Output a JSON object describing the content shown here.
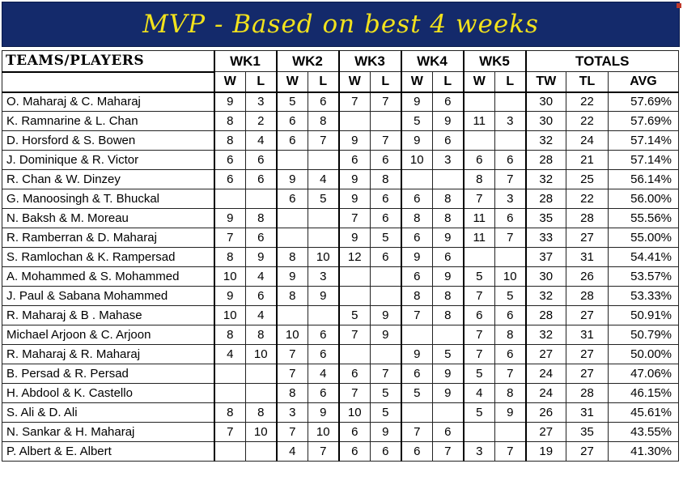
{
  "title": "MVP - Based on best 4 weeks",
  "header": {
    "teams_label": "TEAMS/PLAYERS",
    "weeks": [
      "WK1",
      "WK2",
      "WK3",
      "WK4",
      "WK5"
    ],
    "totals_label": "TOTALS",
    "w": "W",
    "l": "L",
    "tw": "TW",
    "tl": "TL",
    "avg": "AVG"
  },
  "rows": [
    {
      "name": "O. Maharaj & C. Maharaj",
      "wk": [
        [
          "9",
          "3"
        ],
        [
          "5",
          "6"
        ],
        [
          "7",
          "7"
        ],
        [
          "9",
          "6"
        ],
        [
          "",
          ""
        ]
      ],
      "tw": "30",
      "tl": "22",
      "avg": "57.69%"
    },
    {
      "name": "K. Ramnarine & L. Chan",
      "wk": [
        [
          "8",
          "2"
        ],
        [
          "6",
          "8"
        ],
        [
          "",
          ""
        ],
        [
          "5",
          "9"
        ],
        [
          "11",
          "3"
        ]
      ],
      "tw": "30",
      "tl": "22",
      "avg": "57.69%"
    },
    {
      "name": "D. Horsford & S. Bowen",
      "wk": [
        [
          "8",
          "4"
        ],
        [
          "6",
          "7"
        ],
        [
          "9",
          "7"
        ],
        [
          "9",
          "6"
        ],
        [
          "",
          ""
        ]
      ],
      "tw": "32",
      "tl": "24",
      "avg": "57.14%"
    },
    {
      "name": "J. Dominique  & R. Victor",
      "wk": [
        [
          "6",
          "6"
        ],
        [
          "",
          ""
        ],
        [
          "6",
          "6"
        ],
        [
          "10",
          "3"
        ],
        [
          "6",
          "6"
        ]
      ],
      "tw": "28",
      "tl": "21",
      "avg": "57.14%"
    },
    {
      "name": "R. Chan & W. Dinzey",
      "wk": [
        [
          "6",
          "6"
        ],
        [
          "9",
          "4"
        ],
        [
          "9",
          "8"
        ],
        [
          "",
          ""
        ],
        [
          "8",
          "7"
        ]
      ],
      "tw": "32",
      "tl": "25",
      "avg": "56.14%"
    },
    {
      "name": "G. Manoosingh & T. Bhuckal",
      "wk": [
        [
          "",
          ""
        ],
        [
          "6",
          "5"
        ],
        [
          "9",
          "6"
        ],
        [
          "6",
          "8"
        ],
        [
          "7",
          "3"
        ]
      ],
      "tw": "28",
      "tl": "22",
      "avg": "56.00%"
    },
    {
      "name": "N. Baksh & M. Moreau",
      "wk": [
        [
          "9",
          "8"
        ],
        [
          "",
          ""
        ],
        [
          "7",
          "6"
        ],
        [
          "8",
          "8"
        ],
        [
          "11",
          "6"
        ]
      ],
      "tw": "35",
      "tl": "28",
      "avg": "55.56%"
    },
    {
      "name": "R. Ramberran & D. Maharaj",
      "wk": [
        [
          "7",
          "6"
        ],
        [
          "",
          ""
        ],
        [
          "9",
          "5"
        ],
        [
          "6",
          "9"
        ],
        [
          "11",
          "7"
        ]
      ],
      "tw": "33",
      "tl": "27",
      "avg": "55.00%"
    },
    {
      "name": "S. Ramlochan & K. Rampersad",
      "wk": [
        [
          "8",
          "9"
        ],
        [
          "8",
          "10"
        ],
        [
          "12",
          "6"
        ],
        [
          "9",
          "6"
        ],
        [
          "",
          ""
        ]
      ],
      "tw": "37",
      "tl": "31",
      "avg": "54.41%"
    },
    {
      "name": "A. Mohammed & S. Mohammed",
      "wk": [
        [
          "10",
          "4"
        ],
        [
          "9",
          "3"
        ],
        [
          "",
          ""
        ],
        [
          "6",
          "9"
        ],
        [
          "5",
          "10"
        ]
      ],
      "tw": "30",
      "tl": "26",
      "avg": "53.57%"
    },
    {
      "name": "J. Paul & Sabana Mohammed",
      "wk": [
        [
          "9",
          "6"
        ],
        [
          "8",
          "9"
        ],
        [
          "",
          ""
        ],
        [
          "8",
          "8"
        ],
        [
          "7",
          "5"
        ]
      ],
      "tw": "32",
      "tl": "28",
      "avg": "53.33%"
    },
    {
      "name": "R. Maharaj & B . Mahase",
      "wk": [
        [
          "10",
          "4"
        ],
        [
          "",
          ""
        ],
        [
          "5",
          "9"
        ],
        [
          "7",
          "8"
        ],
        [
          "6",
          "6"
        ]
      ],
      "tw": "28",
      "tl": "27",
      "avg": "50.91%"
    },
    {
      "name": "Michael Arjoon & C. Arjoon",
      "wk": [
        [
          "8",
          "8"
        ],
        [
          "10",
          "6"
        ],
        [
          "7",
          "9"
        ],
        [
          "",
          ""
        ],
        [
          "7",
          "8"
        ]
      ],
      "tw": "32",
      "tl": "31",
      "avg": "50.79%"
    },
    {
      "name": "R. Maharaj & R. Maharaj",
      "wk": [
        [
          "4",
          "10"
        ],
        [
          "7",
          "6"
        ],
        [
          "",
          ""
        ],
        [
          "9",
          "5"
        ],
        [
          "7",
          "6"
        ]
      ],
      "tw": "27",
      "tl": "27",
      "avg": "50.00%"
    },
    {
      "name": "B. Persad & R. Persad",
      "wk": [
        [
          "",
          ""
        ],
        [
          "7",
          "4"
        ],
        [
          "6",
          "7"
        ],
        [
          "6",
          "9"
        ],
        [
          "5",
          "7"
        ]
      ],
      "tw": "24",
      "tl": "27",
      "avg": "47.06%"
    },
    {
      "name": "H. Abdool & K. Castello",
      "wk": [
        [
          "",
          ""
        ],
        [
          "8",
          "6"
        ],
        [
          "7",
          "5"
        ],
        [
          "5",
          "9"
        ],
        [
          "4",
          "8"
        ]
      ],
      "tw": "24",
      "tl": "28",
      "avg": "46.15%"
    },
    {
      "name": "S. Ali & D. Ali",
      "wk": [
        [
          "8",
          "8"
        ],
        [
          "3",
          "9"
        ],
        [
          "10",
          "5"
        ],
        [
          "",
          ""
        ],
        [
          "5",
          "9"
        ]
      ],
      "tw": "26",
      "tl": "31",
      "avg": "45.61%"
    },
    {
      "name": "N. Sankar & H. Maharaj",
      "wk": [
        [
          "7",
          "10"
        ],
        [
          "7",
          "10"
        ],
        [
          "6",
          "9"
        ],
        [
          "7",
          "6"
        ],
        [
          "",
          ""
        ]
      ],
      "tw": "27",
      "tl": "35",
      "avg": "43.55%"
    },
    {
      "name": "P. Albert & E. Albert",
      "wk": [
        [
          "",
          ""
        ],
        [
          "4",
          "7"
        ],
        [
          "6",
          "6"
        ],
        [
          "6",
          "7"
        ],
        [
          "3",
          "7"
        ]
      ],
      "tw": "19",
      "tl": "27",
      "avg": "41.30%"
    }
  ]
}
